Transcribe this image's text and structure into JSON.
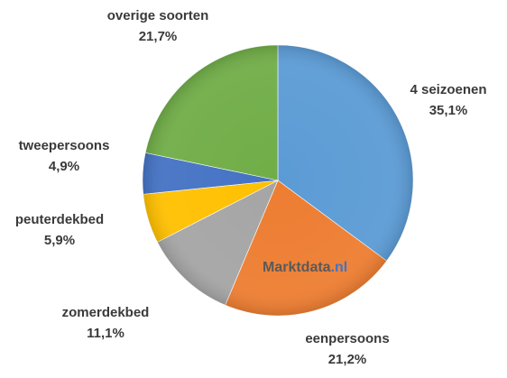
{
  "chart_data": {
    "type": "pie",
    "title": "",
    "slices": [
      {
        "name": "4 seizoenen",
        "value": 35.1,
        "label": "35,1%",
        "color": "#5b9bd5"
      },
      {
        "name": "eenpersoons",
        "value": 21.2,
        "label": "21,2%",
        "color": "#ed7d31"
      },
      {
        "name": "zomerdekbed",
        "value": 11.1,
        "label": "11,1%",
        "color": "#a5a5a5"
      },
      {
        "name": "peuterdekbed",
        "value": 5.9,
        "label": "5,9%",
        "color": "#ffc000"
      },
      {
        "name": "tweepersoons",
        "value": 4.9,
        "label": "4,9%",
        "color": "#4472c4"
      },
      {
        "name": "overige soorten",
        "value": 21.7,
        "label": "21,7%",
        "color": "#70ad47"
      }
    ],
    "start": "12 o'clock",
    "direction": "clockwise",
    "legend": "none",
    "label_position": "outside"
  },
  "watermark": {
    "brand": "Marktdata",
    "suffix": ".nl",
    "brand_color": "#5a5a5a",
    "suffix_color": "#4472c4"
  }
}
